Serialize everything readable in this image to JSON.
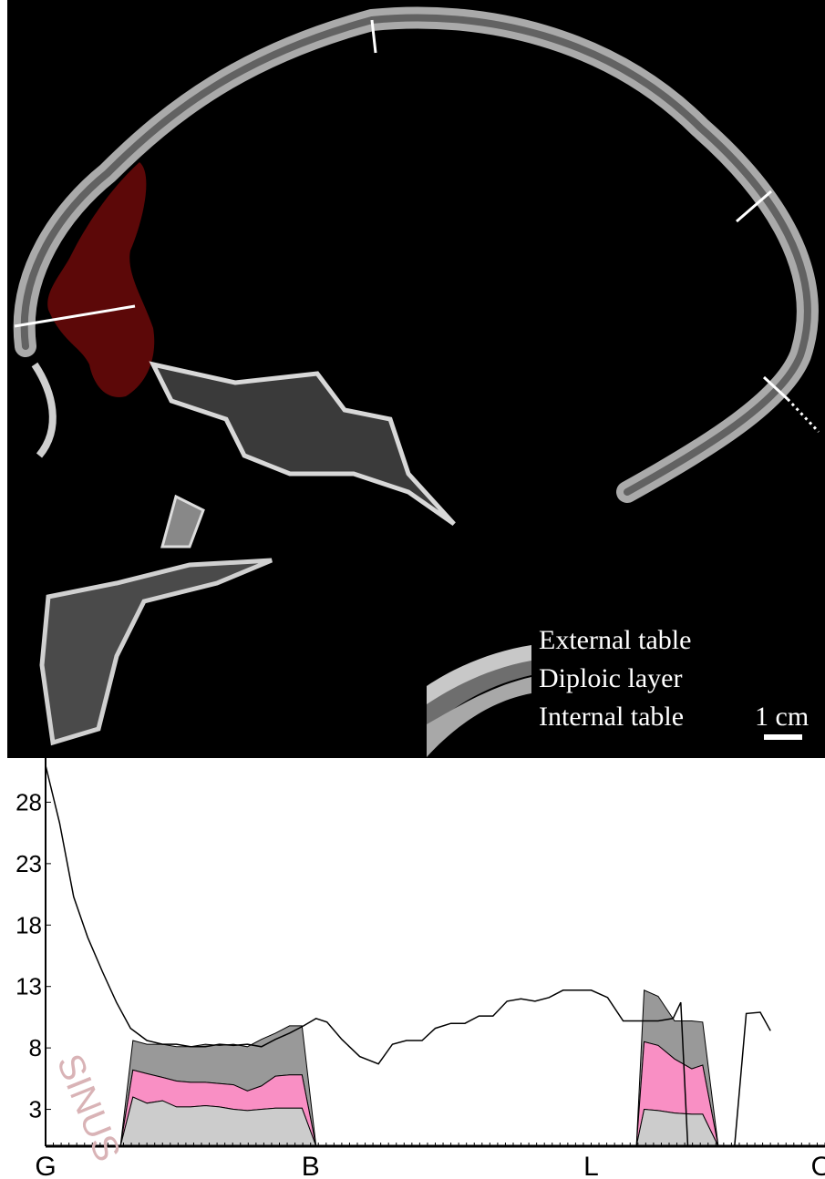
{
  "legend": {
    "external": "External table",
    "diploic": "Diploic layer",
    "internal": "Internal table",
    "scale": "1 cm"
  },
  "colors": {
    "sinus_fill": "#5c0808",
    "external_table": "#999999",
    "diploic_layer": "#f98fc4",
    "internal_table": "#cccccc",
    "profile_line": "#000000",
    "sinus_label": "#d9b3b6"
  },
  "chart_data": {
    "type": "area",
    "annotation": "SINUS",
    "x_tick_labels": [
      {
        "label": "G",
        "x": 0
      },
      {
        "label": "B",
        "x": 34
      },
      {
        "label": "L",
        "x": 70
      },
      {
        "label": "O",
        "x": 100
      }
    ],
    "y_ticks": [
      3,
      8,
      13,
      18,
      23,
      28
    ],
    "ylim": [
      0,
      31
    ],
    "xlim": [
      0,
      100
    ],
    "total_thickness": {
      "x": [
        0,
        1.8,
        3.6,
        5.4,
        7.3,
        9.1,
        10.9,
        13.0,
        15.0,
        16.8,
        18.6,
        20.5,
        22.3,
        24.1,
        25.9,
        27.7,
        29.5,
        31.3,
        33.1,
        34.7,
        36.1,
        38.0,
        40.3,
        42.7,
        44.5,
        46.3,
        48.3,
        50.0,
        52.0,
        53.8,
        55.6,
        57.4,
        59.2,
        61.0,
        62.8,
        64.6,
        66.4,
        68.2,
        70.0,
        72.1,
        74.1,
        76.2,
        78.6,
        80.5,
        81.5,
        82.4,
        84.5,
        86.3,
        88.4,
        89.9,
        91.7,
        93.0
      ],
      "y": [
        31.0,
        26.3,
        20.3,
        17.0,
        14.2,
        11.7,
        9.6,
        8.6,
        8.3,
        8.3,
        8.1,
        8.1,
        8.3,
        8.2,
        8.3,
        8.1,
        8.7,
        9.2,
        9.8,
        10.4,
        10.1,
        8.7,
        7.3,
        6.7,
        8.3,
        8.6,
        8.6,
        9.6,
        10.0,
        10.0,
        10.6,
        10.6,
        11.8,
        12.0,
        11.8,
        12.1,
        12.7,
        12.7,
        12.7,
        12.1,
        10.2,
        10.2,
        10.2,
        10.4,
        11.7,
        0,
        0,
        0,
        0,
        10.8,
        10.9,
        9.4
      ]
    },
    "sections": [
      {
        "name": "glabella-bregma",
        "x": [
          9.6,
          11.2,
          13.0,
          15.0,
          16.8,
          18.6,
          20.5,
          22.3,
          24.1,
          25.9,
          27.7,
          29.5,
          31.3,
          32.9,
          34.7
        ],
        "total": [
          0,
          8.6,
          8.3,
          8.3,
          8.1,
          8.1,
          8.3,
          8.2,
          8.3,
          8.1,
          8.7,
          9.2,
          9.8,
          9.8,
          0
        ],
        "diploe_top": [
          0,
          6.2,
          5.9,
          5.6,
          5.3,
          5.2,
          5.2,
          5.1,
          5.0,
          4.5,
          4.9,
          5.7,
          5.8,
          5.8,
          0
        ],
        "internal_top": [
          0,
          4.0,
          3.5,
          3.7,
          3.2,
          3.2,
          3.3,
          3.2,
          3.0,
          2.9,
          3.0,
          3.1,
          3.1,
          3.1,
          0
        ]
      },
      {
        "name": "lambda-opisthocranion",
        "x": [
          75.8,
          76.8,
          78.6,
          80.7,
          82.9,
          84.3,
          86.3
        ],
        "total": [
          0,
          12.7,
          12.2,
          10.2,
          10.2,
          10.1,
          0
        ],
        "diploe_top": [
          0,
          8.5,
          8.2,
          7.1,
          6.3,
          6.6,
          0
        ],
        "internal_top": [
          0,
          3.0,
          2.9,
          2.7,
          2.6,
          2.6,
          0
        ]
      }
    ]
  }
}
